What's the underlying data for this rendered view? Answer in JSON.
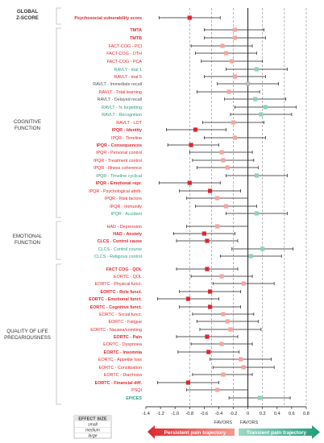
{
  "groups": [
    {
      "lines": [
        "GLOBAL",
        "Z-SCORE"
      ]
    },
    {
      "lines": [
        "COGNITIVE",
        "FUNCTION"
      ]
    },
    {
      "lines": [
        "EMOTIONAL",
        "FUNCTION"
      ]
    },
    {
      "lines": [
        "QUALITY OF LIFE",
        "PRECARIOUSNESS"
      ]
    }
  ],
  "effect_size": {
    "title": "EFFECT SIZE",
    "levels": [
      "small",
      "medium",
      "large"
    ]
  },
  "favors": {
    "left": "FAVORS",
    "right": "FAVORS"
  },
  "arrows": {
    "left": "Persistent pain trajectory",
    "right": "Transient pain trajectory"
  },
  "colors": {
    "red": "#e0262e",
    "green": "#2e9e84",
    "grey": "#555555",
    "salmon": "#f4a6a2",
    "teal": "#8fd1be",
    "light_grey": "#bbbbbb"
  },
  "chart_data": {
    "type": "forest",
    "xlim": [
      -1.4,
      0.8
    ],
    "xticks": [
      "-1.4",
      "-1.2",
      "-1.0",
      "-0.8",
      "-0.6",
      "-0.4",
      "-0.2",
      "0",
      "0.2",
      "0.4",
      "0.6",
      "0.8"
    ],
    "reference_lines": [
      -0.8,
      -0.5,
      -0.2,
      0.2,
      0.5,
      0.8
    ],
    "items": [
      {
        "label": "Psychosocial vulnerability score",
        "group": 0,
        "color": "red",
        "bold": true,
        "value": -0.8,
        "lo": -1.22,
        "hi": -0.38,
        "marker": "red"
      },
      {
        "label": "TMTA",
        "group": 1,
        "color": "red",
        "bold": true,
        "value": -0.18,
        "lo": -0.6,
        "hi": 0.22,
        "marker": "salmon"
      },
      {
        "label": "TMTB",
        "group": 1,
        "color": "red",
        "bold": true,
        "value": -0.18,
        "lo": -0.6,
        "hi": 0.24,
        "marker": "salmon"
      },
      {
        "label": "FACT-COG - PCI",
        "group": 1,
        "color": "red",
        "bold": false,
        "value": -0.35,
        "lo": -0.78,
        "hi": 0.06,
        "marker": "salmon"
      },
      {
        "label": "FACT-COG - OTH",
        "group": 1,
        "color": "red",
        "bold": false,
        "value": -0.3,
        "lo": -0.72,
        "hi": 0.12,
        "marker": "salmon"
      },
      {
        "label": "FACT-COG - PCA",
        "group": 1,
        "color": "red",
        "bold": false,
        "value": -0.22,
        "lo": -0.64,
        "hi": 0.2,
        "marker": "salmon"
      },
      {
        "label": "RAVLT - trial 1",
        "group": 1,
        "color": "green",
        "bold": false,
        "value": 0.12,
        "lo": -0.3,
        "hi": 0.54,
        "marker": "teal"
      },
      {
        "label": "RAVLT - trial 5",
        "group": 1,
        "color": "red",
        "bold": false,
        "value": -0.18,
        "lo": -0.6,
        "hi": 0.24,
        "marker": "salmon"
      },
      {
        "label": "RAVLT - Immediate recall",
        "group": 1,
        "color": "grey",
        "bold": false,
        "value": 0.0,
        "lo": -0.42,
        "hi": 0.42,
        "marker": "light_grey"
      },
      {
        "label": "RAVLT - Total learning",
        "group": 1,
        "color": "red",
        "bold": false,
        "value": -0.26,
        "lo": -0.7,
        "hi": 0.16,
        "marker": "salmon"
      },
      {
        "label": "RAVLT - Delayed recall",
        "group": 1,
        "color": "grey",
        "bold": false,
        "value": 0.1,
        "lo": -0.32,
        "hi": 0.52,
        "marker": "teal"
      },
      {
        "label": "RAVLT - % forgetting",
        "group": 1,
        "color": "green",
        "bold": false,
        "value": 0.24,
        "lo": -0.18,
        "hi": 0.66,
        "marker": "teal"
      },
      {
        "label": "RAVLT - Recognition",
        "group": 1,
        "color": "green",
        "bold": false,
        "value": 0.18,
        "lo": -0.24,
        "hi": 0.6,
        "marker": "teal"
      },
      {
        "label": "RAVLT - LOT",
        "group": 1,
        "color": "red",
        "bold": false,
        "value": -0.2,
        "lo": -0.62,
        "hi": 0.22,
        "marker": "salmon"
      },
      {
        "label": "IPQR - Identity",
        "group": 1,
        "color": "red",
        "bold": true,
        "value": -0.72,
        "lo": -1.12,
        "hi": -0.3,
        "marker": "red"
      },
      {
        "label": "IPQR - Timeline",
        "group": 1,
        "color": "red",
        "bold": false,
        "value": -0.18,
        "lo": -0.6,
        "hi": 0.24,
        "marker": "salmon"
      },
      {
        "label": "IPQR - Consequences",
        "group": 1,
        "color": "red",
        "bold": true,
        "value": -0.78,
        "lo": -1.1,
        "hi": -0.4,
        "marker": "red"
      },
      {
        "label": "IPQR - Personal control",
        "group": 1,
        "color": "red",
        "bold": false,
        "value": -0.36,
        "lo": -0.8,
        "hi": 0.06,
        "marker": "salmon"
      },
      {
        "label": "IPQR - Treatment control",
        "group": 1,
        "color": "red",
        "bold": false,
        "value": -0.34,
        "lo": -0.76,
        "hi": 0.08,
        "marker": "salmon"
      },
      {
        "label": "IPQR - Illness coherence",
        "group": 1,
        "color": "red",
        "bold": false,
        "value": -0.28,
        "lo": -0.7,
        "hi": 0.14,
        "marker": "salmon"
      },
      {
        "label": "IPQR - Timeline cyclical",
        "group": 1,
        "color": "green",
        "bold": false,
        "value": 0.12,
        "lo": -0.3,
        "hi": 0.54,
        "marker": "teal"
      },
      {
        "label": "IPQR - Emotional repr.",
        "group": 1,
        "color": "red",
        "bold": true,
        "value": -0.8,
        "lo": -1.22,
        "hi": -0.38,
        "marker": "red"
      },
      {
        "label": "IPQR - Psychological attrib.",
        "group": 1,
        "color": "red",
        "bold": false,
        "value": -0.52,
        "lo": -0.94,
        "hi": -0.1,
        "marker": "red"
      },
      {
        "label": "IPQR - Risk factors",
        "group": 1,
        "color": "red",
        "bold": false,
        "value": -0.42,
        "lo": -0.84,
        "hi": 0.0,
        "marker": "salmon"
      },
      {
        "label": "IPQR - Immunity",
        "group": 1,
        "color": "red",
        "bold": false,
        "value": -0.3,
        "lo": -0.72,
        "hi": 0.12,
        "marker": "salmon"
      },
      {
        "label": "IPQR - Accident",
        "group": 1,
        "color": "green",
        "bold": false,
        "value": 0.12,
        "lo": -0.3,
        "hi": 0.54,
        "marker": "teal"
      },
      {
        "label": "HAD - Depression",
        "group": 2,
        "color": "red",
        "bold": false,
        "value": -0.42,
        "lo": -0.84,
        "hi": 0.0,
        "marker": "salmon"
      },
      {
        "label": "HAD - Anxiety",
        "group": 2,
        "color": "red",
        "bold": true,
        "value": -0.6,
        "lo": -1.02,
        "hi": -0.18,
        "marker": "red"
      },
      {
        "label": "CLCS - Control cause",
        "group": 2,
        "color": "red",
        "bold": true,
        "value": -0.56,
        "lo": -0.98,
        "hi": -0.14,
        "marker": "red"
      },
      {
        "label": "CLCS - Control course",
        "group": 2,
        "color": "green",
        "bold": false,
        "value": 0.2,
        "lo": -0.22,
        "hi": 0.62,
        "marker": "teal"
      },
      {
        "label": "CLCS - Religious control",
        "group": 2,
        "color": "green",
        "bold": false,
        "value": 0.04,
        "lo": -0.38,
        "hi": 0.46,
        "marker": "teal"
      },
      {
        "label": "FACT COG - QOL",
        "group": 3,
        "color": "red",
        "bold": true,
        "value": -0.56,
        "lo": -0.98,
        "hi": -0.14,
        "marker": "red"
      },
      {
        "label": "EORTC - QOL",
        "group": 3,
        "color": "red",
        "bold": false,
        "value": -0.36,
        "lo": -0.78,
        "hi": 0.06,
        "marker": "salmon"
      },
      {
        "label": "EORTC - Physical funct.",
        "group": 3,
        "color": "red",
        "bold": false,
        "value": -0.06,
        "lo": -0.48,
        "hi": 0.36,
        "marker": "salmon"
      },
      {
        "label": "EORTC - Role funct.",
        "group": 3,
        "color": "red",
        "bold": true,
        "value": -0.52,
        "lo": -0.94,
        "hi": -0.1,
        "marker": "red"
      },
      {
        "label": "EORTC - Emotional funct.",
        "group": 3,
        "color": "red",
        "bold": true,
        "value": -0.82,
        "lo": -1.24,
        "hi": -0.4,
        "marker": "red"
      },
      {
        "label": "EORTC - Cognitive funct.",
        "group": 3,
        "color": "red",
        "bold": true,
        "value": -0.52,
        "lo": -0.94,
        "hi": -0.1,
        "marker": "red"
      },
      {
        "label": "EORTC - Social funct.",
        "group": 3,
        "color": "red",
        "bold": false,
        "value": -0.34,
        "lo": -0.76,
        "hi": 0.08,
        "marker": "salmon"
      },
      {
        "label": "EORTC - Fatigue",
        "group": 3,
        "color": "red",
        "bold": false,
        "value": -0.28,
        "lo": -0.7,
        "hi": 0.14,
        "marker": "salmon"
      },
      {
        "label": "EORTC - Nausea/vomiting",
        "group": 3,
        "color": "red",
        "bold": false,
        "value": -0.24,
        "lo": -0.66,
        "hi": 0.18,
        "marker": "salmon"
      },
      {
        "label": "EORTC - Pain",
        "group": 3,
        "color": "red",
        "bold": true,
        "value": -0.56,
        "lo": -0.98,
        "hi": -0.14,
        "marker": "red"
      },
      {
        "label": "EORTC - Dyspnoea",
        "group": 3,
        "color": "red",
        "bold": false,
        "value": -0.36,
        "lo": -0.78,
        "hi": 0.06,
        "marker": "salmon"
      },
      {
        "label": "EORTC - Insomnia",
        "group": 3,
        "color": "red",
        "bold": true,
        "value": -0.54,
        "lo": -0.96,
        "hi": -0.12,
        "marker": "red"
      },
      {
        "label": "EORTC - Appetite loss",
        "group": 3,
        "color": "red",
        "bold": false,
        "value": -0.1,
        "lo": -0.52,
        "hi": 0.32,
        "marker": "salmon"
      },
      {
        "label": "EORTC - Constipation",
        "group": 3,
        "color": "red",
        "bold": false,
        "value": -0.06,
        "lo": -0.48,
        "hi": 0.36,
        "marker": "salmon"
      },
      {
        "label": "EORTC - Diarrhoea",
        "group": 3,
        "color": "red",
        "bold": false,
        "value": -0.34,
        "lo": -0.76,
        "hi": 0.06,
        "marker": "salmon"
      },
      {
        "label": "EORTC - Financial diff.",
        "group": 3,
        "color": "red",
        "bold": true,
        "value": -0.82,
        "lo": -1.24,
        "hi": -0.4,
        "marker": "red"
      },
      {
        "label": "PSQI",
        "group": 3,
        "color": "red",
        "bold": false,
        "value": -0.42,
        "lo": -0.84,
        "hi": 0.0,
        "marker": "salmon"
      },
      {
        "label": "EPICES",
        "group": 3,
        "color": "green",
        "bold": true,
        "value": 0.16,
        "lo": -0.26,
        "hi": 0.58,
        "marker": "teal"
      }
    ]
  }
}
